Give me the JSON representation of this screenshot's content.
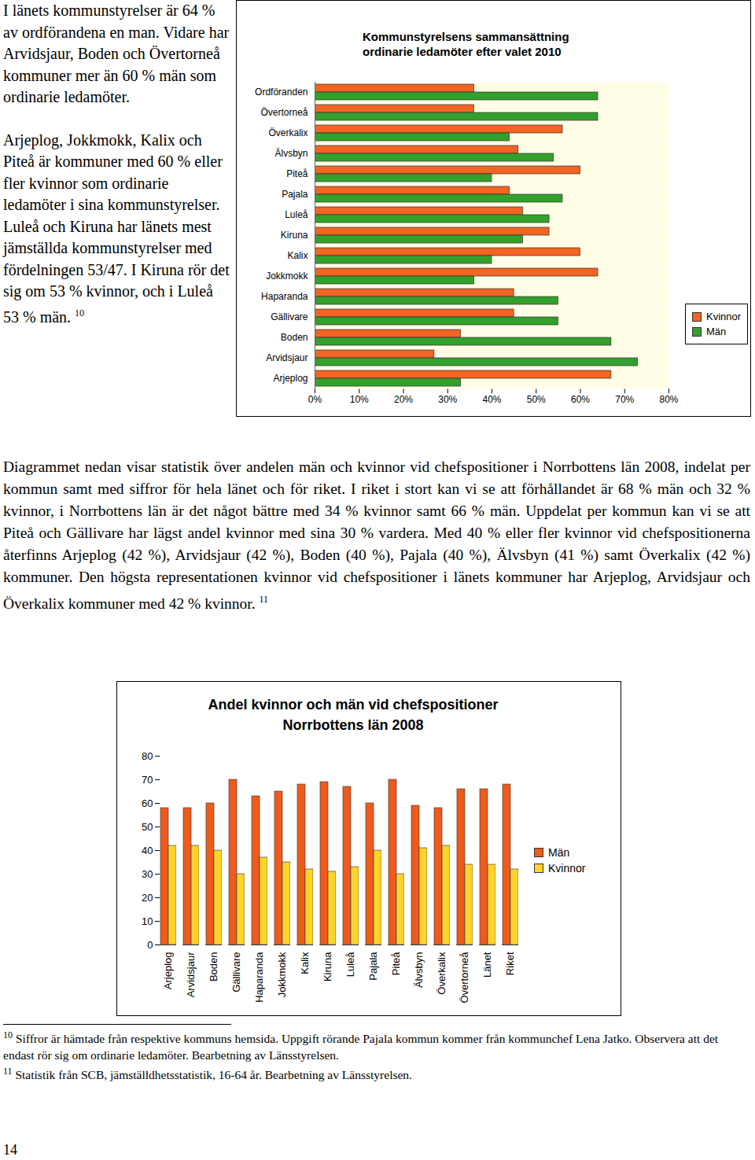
{
  "document": {
    "left_paragraphs": [
      "I länets kommunstyrelser är 64 % av ordförandena en man. Vidare har Arvidsjaur, Boden och Övertorneå kommuner mer än 60 % män som ordinarie ledamöter.",
      "Arjeplog, Jokkmokk, Kalix och Piteå är kommuner med 60 % eller fler kvinnor som ordinarie ledamöter i sina kommunstyrelser. Luleå och Kiruna har länets mest jämställda kommunstyrelser med fördelningen 53/47. I Kiruna rör det sig om 53 % kvinnor, och i Luleå 53 % män."
    ],
    "left_footnote_ref": "10",
    "middle_paragraph": "Diagrammet nedan visar statistik över andelen män och kvinnor vid chefspositioner i Norrbottens län 2008, indelat per kommun samt med siffror för hela länet och för riket. I riket i stort kan vi se att förhållandet är 68 % män och 32 % kvinnor, i Norrbottens län är det något bättre med 34 % kvinnor samt 66 % män. Uppdelat per kommun kan vi se att Piteå och Gällivare har lägst andel kvinnor med sina 30 % vardera. Med 40 % eller fler kvinnor vid chefspositionerna återfinns Arjeplog (42 %), Arvidsjaur (42 %), Boden (40 %), Pajala (40 %), Älvsbyn (41 %) samt Överkalix (42 %) kommuner. Den högsta representationen kvinnor vid chefspositioner i länets kommuner har Arjeplog, Arvidsjaur och Överkalix kommuner med 42 % kvinnor.",
    "middle_footnote_ref": "11",
    "footnotes": [
      {
        "mark": "10",
        "text": "Siffror är hämtade från respektive kommuns hemsida. Uppgift rörande Pajala kommun kommer från kommunchef Lena Jatko. Observera att det endast rör sig om ordinarie ledamöter. Bearbetning av Länsstyrelsen."
      },
      {
        "mark": "11",
        "text": "Statistik från SCB, jämställdhetsstatistik, 16-64 år. Bearbetning av Länsstyrelsen."
      }
    ],
    "page_number": "14"
  },
  "chart_data": [
    {
      "type": "bar",
      "orientation": "horizontal",
      "title": "Kommunstyrelsens sammansättning\nordinarie ledamöter efter valet 2010",
      "categories": [
        "Ordföranden",
        "Övertorneå",
        "Överkalix",
        "Älvsbyn",
        "Piteå",
        "Pajala",
        "Luleå",
        "Kiruna",
        "Kalix",
        "Jokkmokk",
        "Haparanda",
        "Gällivare",
        "Boden",
        "Arvidsjaur",
        "Arjeplog"
      ],
      "series": [
        {
          "name": "Kvinnor",
          "color": "#f26522",
          "values": [
            36,
            36,
            56,
            46,
            60,
            44,
            47,
            53,
            60,
            64,
            45,
            45,
            33,
            27,
            67
          ]
        },
        {
          "name": "Män",
          "color": "#33a02c",
          "values": [
            64,
            64,
            44,
            54,
            40,
            56,
            53,
            47,
            40,
            36,
            55,
            55,
            67,
            73,
            33
          ]
        }
      ],
      "xlim": [
        0,
        80
      ],
      "xticks": [
        {
          "value": 0,
          "label": "0%"
        },
        {
          "value": 10,
          "label": "10%"
        },
        {
          "value": 20,
          "label": "20%"
        },
        {
          "value": 30,
          "label": "30%"
        },
        {
          "value": 40,
          "label": "40%"
        },
        {
          "value": 50,
          "label": "50%"
        },
        {
          "value": 60,
          "label": "60%"
        },
        {
          "value": 70,
          "label": "70%"
        },
        {
          "value": 80,
          "label": "80%"
        }
      ],
      "grid": false,
      "legend": "right"
    },
    {
      "type": "bar",
      "title": "Andel kvinnor och män vid chefspositioner\nNorrbottens län 2008",
      "categories": [
        "Arjeplog",
        "Arvidsjaur",
        "Boden",
        "Gällivare",
        "Haparanda",
        "Jokkmokk",
        "Kalix",
        "Kiruna",
        "Luleå",
        "Pajala",
        "Piteå",
        "Älvsbyn",
        "Överkalix",
        "Övertorneå",
        "Länet",
        "Riket"
      ],
      "series": [
        {
          "name": "Män",
          "color": "#f05a1a",
          "values": [
            58,
            58,
            60,
            70,
            63,
            65,
            68,
            69,
            67,
            60,
            70,
            59,
            58,
            66,
            66,
            68
          ]
        },
        {
          "name": "Kvinnor",
          "color": "#ffd42a",
          "values": [
            42,
            42,
            40,
            30,
            37,
            35,
            32,
            31,
            33,
            40,
            30,
            41,
            42,
            34,
            34,
            32
          ]
        }
      ],
      "ylim": [
        0,
        80
      ],
      "yticks": [
        0,
        10,
        20,
        30,
        40,
        50,
        60,
        70,
        80
      ],
      "grid": false,
      "legend": "right"
    }
  ]
}
